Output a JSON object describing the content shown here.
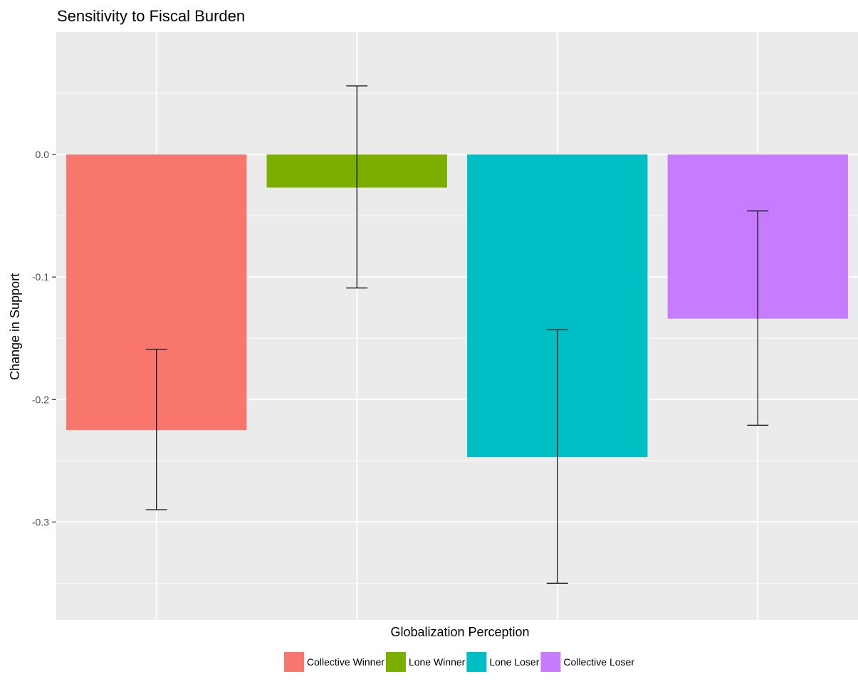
{
  "chart_data": {
    "type": "bar",
    "title": "Sensitivity to Fiscal Burden",
    "xlabel": "Globalization Perception",
    "ylabel": "Change in Support",
    "categories": [
      "Collective Winner",
      "Lone Winner",
      "Lone Loser",
      "Collective Loser"
    ],
    "values": [
      -0.225,
      -0.027,
      -0.247,
      -0.134
    ],
    "error_low": [
      -0.29,
      -0.109,
      -0.35,
      -0.221
    ],
    "error_high": [
      -0.159,
      0.056,
      -0.143,
      -0.046
    ],
    "colors": [
      "#F8766D",
      "#7CAE00",
      "#00BFC4",
      "#C77CFF"
    ],
    "ylim": [
      -0.38,
      0.1
    ],
    "yticks": [
      0.0,
      -0.1,
      -0.2,
      -0.3
    ],
    "ytick_labels": [
      "0.0",
      "-0.1",
      "-0.2",
      "-0.3"
    ],
    "grid": true,
    "legend_position": "bottom",
    "panel_background": "#EBEBEB",
    "gridline_color": "#FFFFFF"
  }
}
